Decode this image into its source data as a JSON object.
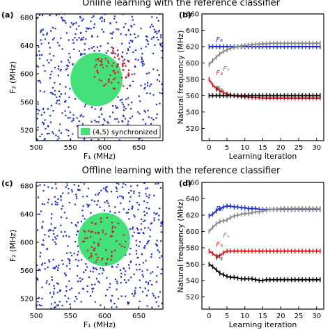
{
  "figure": {
    "titles": [
      "Online learning with the reference classifier",
      "Offline learning with the reference classifier"
    ],
    "colors": {
      "circle": "#44e07a",
      "dots_blue": "#1f2fc8",
      "dots_red": "#d11a1a",
      "f6": "#1f2fc8",
      "f5": "#8a8a8a",
      "f4": "#e01b1b",
      "f3": "#000000"
    }
  },
  "chart_data": [
    {
      "type": "scatter",
      "panel_label": "(a)",
      "title": "Online learning with the reference classifier",
      "xlabel": "F₁ (MHz)",
      "ylabel": "F₂ (MHz)",
      "xlim": [
        500,
        685
      ],
      "ylim": [
        505,
        685
      ],
      "xticks": [
        500,
        550,
        600,
        650
      ],
      "yticks": [
        520,
        560,
        600,
        640,
        680
      ],
      "legend": {
        "label": "(4,5) synchronized",
        "placement": "bottom-right"
      },
      "synchronized_region": {
        "center": [
          588,
          592
        ],
        "radius": 38
      },
      "red_scatter_region": {
        "center": [
          612,
          608
        ],
        "radius": 30
      },
      "scatter_seed": 7,
      "blue_dot_count": 460,
      "red_dot_count": 75
    },
    {
      "type": "line",
      "panel_label": "(b)",
      "xlabel": "Learning iteration",
      "ylabel": "Natural frequency (MHz)",
      "xlim": [
        -2,
        32
      ],
      "ylim": [
        505,
        660
      ],
      "xticks": [
        0,
        5,
        10,
        15,
        20,
        25,
        30
      ],
      "yticks": [
        520,
        540,
        560,
        580,
        600,
        620,
        640,
        660
      ],
      "series": [
        {
          "name": "F₆",
          "color": "#1f2fc8",
          "x": [
            0,
            1,
            2,
            3,
            4,
            5,
            6,
            7,
            8,
            9,
            10,
            11,
            12,
            13,
            14,
            15,
            16,
            17,
            18,
            19,
            20,
            21,
            22,
            23,
            24,
            25,
            26,
            27,
            28,
            29,
            30,
            31
          ],
          "y": [
            620,
            620,
            620,
            620,
            620,
            620,
            620,
            620,
            620,
            620,
            620,
            620,
            620,
            620,
            620,
            620,
            620,
            620,
            620,
            620,
            620,
            620,
            620,
            620,
            620,
            620,
            620,
            620,
            620,
            620,
            620,
            620
          ]
        },
        {
          "name": "F₅",
          "color": "#8a8a8a",
          "x": [
            0,
            1,
            2,
            3,
            4,
            5,
            6,
            7,
            8,
            9,
            10,
            11,
            12,
            13,
            14,
            15,
            16,
            17,
            18,
            19,
            20,
            21,
            22,
            23,
            24,
            25,
            26,
            27,
            28,
            29,
            30,
            31
          ],
          "y": [
            598,
            603,
            607,
            611,
            614,
            616,
            618,
            619,
            620,
            621,
            621.5,
            622,
            622.5,
            623,
            623,
            623.5,
            623.5,
            624,
            624,
            624,
            624,
            624,
            624,
            624,
            624,
            624,
            624,
            624,
            624,
            624,
            624,
            624
          ]
        },
        {
          "name": "F₄",
          "color": "#e01b1b",
          "x": [
            0,
            1,
            2,
            3,
            4,
            5,
            6,
            7,
            8,
            9,
            10,
            11,
            12,
            13,
            14,
            15,
            16,
            17,
            18,
            19,
            20,
            21,
            22,
            23,
            24,
            25,
            26,
            27,
            28,
            29,
            30,
            31
          ],
          "y": [
            580,
            573,
            569,
            566,
            564,
            562,
            561,
            560,
            559.5,
            559,
            558.5,
            558,
            558,
            557.5,
            557.5,
            557,
            557,
            557,
            557,
            557,
            557,
            557,
            557,
            557,
            557,
            557,
            557,
            557,
            557,
            557,
            557,
            557
          ]
        },
        {
          "name": "F₃",
          "color": "#000000",
          "x": [
            0,
            1,
            2,
            3,
            4,
            5,
            6,
            7,
            8,
            9,
            10,
            11,
            12,
            13,
            14,
            15,
            16,
            17,
            18,
            19,
            20,
            21,
            22,
            23,
            24,
            25,
            26,
            27,
            28,
            29,
            30,
            31
          ],
          "y": [
            560,
            560,
            560,
            560,
            560,
            560,
            560,
            560,
            560,
            560,
            560,
            560,
            560,
            560,
            560,
            560,
            560,
            560,
            560,
            560,
            560,
            560,
            560,
            560,
            560,
            560,
            560,
            560,
            560,
            560,
            560,
            560
          ]
        }
      ]
    },
    {
      "type": "scatter",
      "panel_label": "(c)",
      "title": "Offline learning with the reference classifier",
      "xlabel": "F₁ (MHz)",
      "ylabel": "F₂ (MHz)",
      "xlim": [
        500,
        685
      ],
      "ylim": [
        505,
        685
      ],
      "xticks": [
        500,
        550,
        600,
        650
      ],
      "yticks": [
        520,
        560,
        600,
        640,
        680
      ],
      "synchronized_region": {
        "center": [
          599,
          604
        ],
        "radius": 38
      },
      "red_scatter_region": {
        "center": [
          599,
          602
        ],
        "radius": 34
      },
      "scatter_seed": 19,
      "blue_dot_count": 470,
      "red_dot_count": 70
    },
    {
      "type": "line",
      "panel_label": "(d)",
      "xlabel": "Learning iteration",
      "ylabel": "Natural frequency (MHz)",
      "xlim": [
        -2,
        32
      ],
      "ylim": [
        505,
        660
      ],
      "xticks": [
        0,
        5,
        10,
        15,
        20,
        25,
        30
      ],
      "yticks": [
        520,
        540,
        560,
        580,
        600,
        620,
        640,
        660
      ],
      "series": [
        {
          "name": "F₆",
          "color": "#1f2fc8",
          "x": [
            0,
            1,
            2,
            3,
            4,
            5,
            6,
            7,
            8,
            9,
            10,
            11,
            12,
            13,
            14,
            15,
            16,
            17,
            18,
            19,
            20,
            21,
            22,
            23,
            24,
            25,
            26,
            27,
            28,
            29,
            30,
            31
          ],
          "y": [
            619,
            621,
            625,
            628,
            630,
            631,
            631,
            630,
            630,
            629,
            629,
            628,
            628,
            628,
            627,
            627,
            627,
            627,
            627,
            627,
            627,
            627,
            627,
            627,
            627,
            627,
            627,
            627,
            627,
            627,
            627,
            627
          ]
        },
        {
          "name": "F₅",
          "color": "#8a8a8a",
          "x": [
            0,
            1,
            2,
            3,
            4,
            5,
            6,
            7,
            8,
            9,
            10,
            11,
            12,
            13,
            14,
            15,
            16,
            17,
            18,
            19,
            20,
            21,
            22,
            23,
            24,
            25,
            26,
            27,
            28,
            29,
            30,
            31
          ],
          "y": [
            600,
            605,
            609,
            612,
            613,
            614,
            617,
            619,
            620,
            621,
            622,
            622,
            623,
            624,
            624,
            625,
            626,
            627,
            627,
            627,
            628,
            628,
            628,
            628,
            628,
            628,
            628,
            628,
            628,
            628,
            628,
            628
          ]
        },
        {
          "name": "F₄",
          "color": "#e01b1b",
          "x": [
            0,
            1,
            2,
            3,
            4,
            5,
            6,
            7,
            8,
            9,
            10,
            11,
            12,
            13,
            14,
            15,
            16,
            17,
            18,
            19,
            20,
            21,
            22,
            23,
            24,
            25,
            26,
            27,
            28,
            29,
            30,
            31
          ],
          "y": [
            576,
            573,
            570,
            570,
            574,
            576,
            576,
            576,
            576,
            576,
            576,
            576,
            576,
            576,
            576,
            576,
            576,
            576,
            576,
            576,
            576,
            576,
            576,
            576,
            576,
            576,
            576,
            576,
            576,
            576,
            576,
            576
          ]
        },
        {
          "name": "F₃",
          "color": "#000000",
          "x": [
            0,
            1,
            2,
            3,
            4,
            5,
            6,
            7,
            8,
            9,
            10,
            11,
            12,
            13,
            14,
            15,
            16,
            17,
            18,
            19,
            20,
            21,
            22,
            23,
            24,
            25,
            26,
            27,
            28,
            29,
            30,
            31
          ],
          "y": [
            560,
            557,
            553,
            549,
            547,
            545,
            544,
            544,
            543,
            542,
            542,
            542,
            542,
            541,
            540,
            540,
            541,
            541,
            541,
            541,
            541,
            541,
            541,
            541,
            541,
            541,
            541,
            541,
            541,
            541,
            541,
            541
          ]
        }
      ]
    }
  ]
}
